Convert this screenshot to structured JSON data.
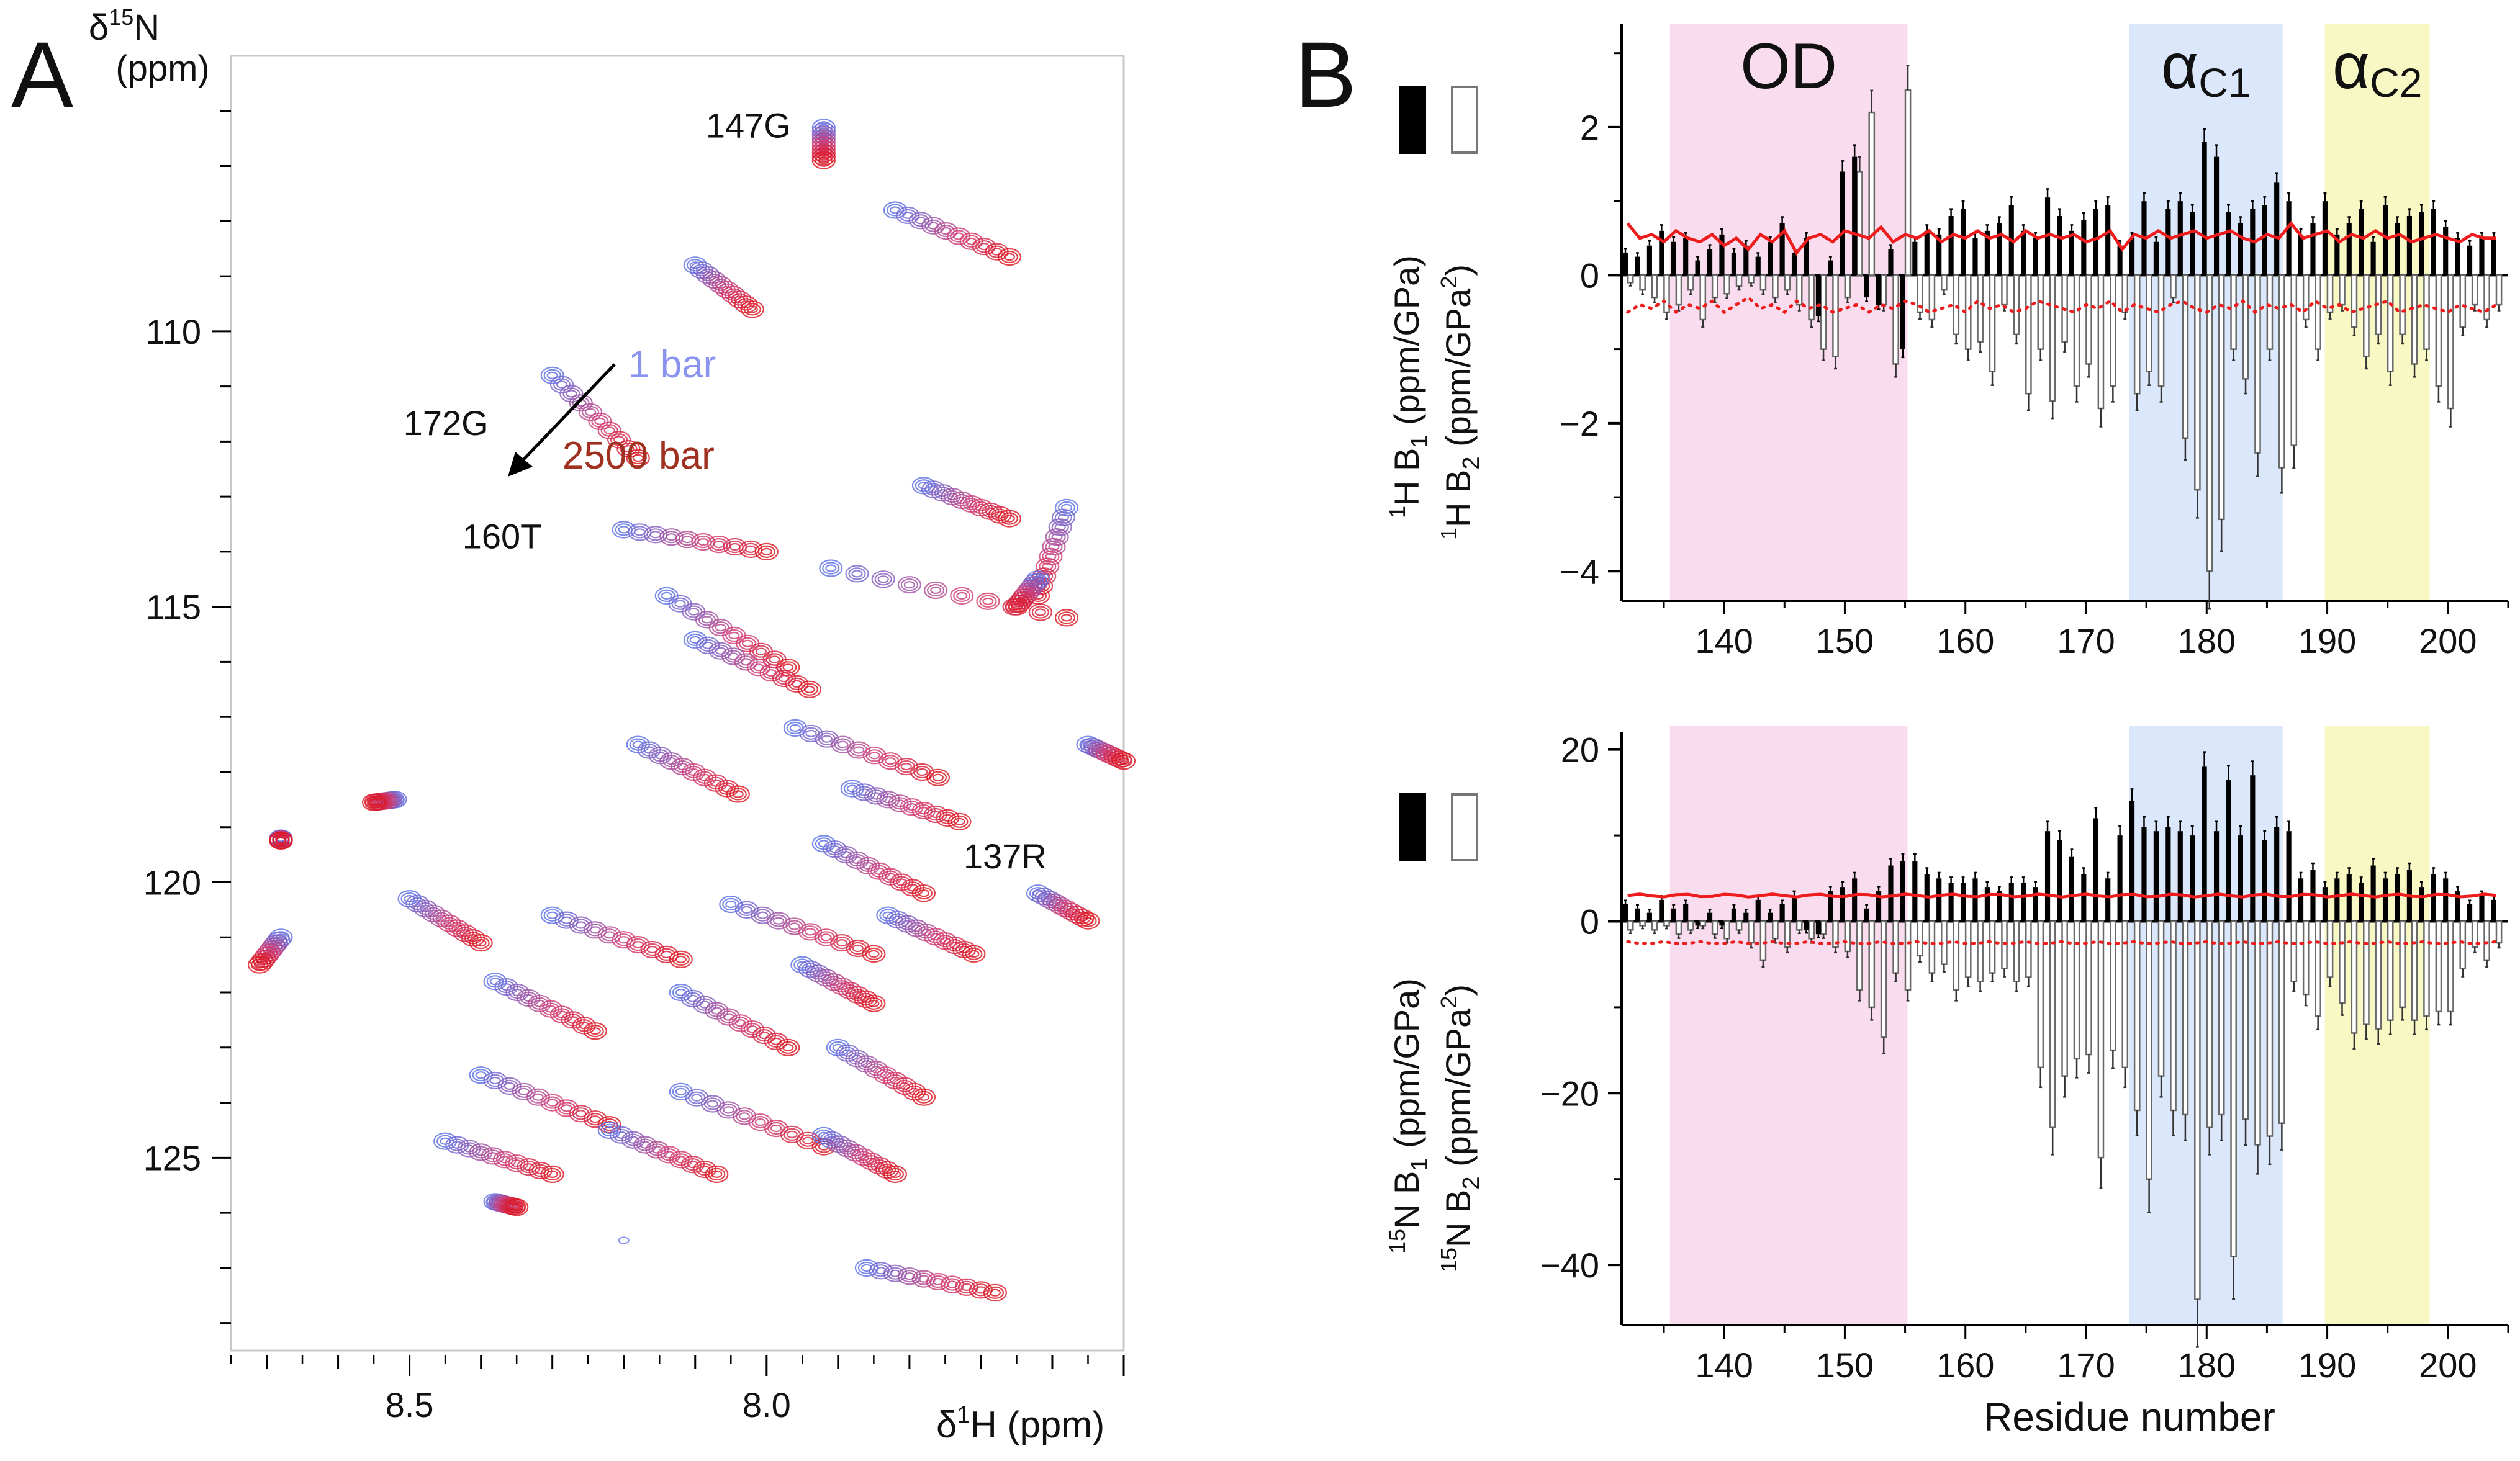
{
  "chart_data": [
    {
      "type": "scatter",
      "panel_label": "A",
      "subtype": "2D NMR 1H-15N HSQC contour overlay",
      "x_axis": {
        "label_prefix": "δ",
        "label_sup": "1",
        "label_rest": "H (ppm)",
        "reversed": true,
        "ticks": [
          "8.5",
          "8.0"
        ],
        "xlim": [
          8.75,
          7.5
        ]
      },
      "y_axis": {
        "label_line1_prefix": "δ",
        "label_line1_sup": "15",
        "label_line1_rest": "N",
        "label_line2": "(ppm)",
        "reversed": true,
        "ticks": [
          "110",
          "115",
          "120",
          "125"
        ],
        "ylim": [
          105,
          128.5
        ]
      },
      "legend": [
        {
          "name": "1 bar",
          "color": "#8a94f0"
        },
        {
          "name": "2500 bar",
          "color": "#a0301f"
        }
      ],
      "annotations": [
        "147G",
        "172G",
        "160T",
        "137R"
      ],
      "peaks": [
        {
          "x": 7.92,
          "y": 106.3,
          "dx": 0.0,
          "dy": 0.6,
          "label": "147G"
        },
        {
          "x": 7.82,
          "y": 107.8,
          "dx": -0.16,
          "dy": 0.85
        },
        {
          "x": 8.1,
          "y": 108.8,
          "dx": -0.08,
          "dy": 0.8
        },
        {
          "x": 8.3,
          "y": 110.8,
          "dx": -0.12,
          "dy": 1.5,
          "label": "172G"
        },
        {
          "x": 8.2,
          "y": 113.6,
          "dx": -0.2,
          "dy": 0.4,
          "label": "160T"
        },
        {
          "x": 7.78,
          "y": 112.8,
          "dx": -0.12,
          "dy": 0.6
        },
        {
          "x": 7.58,
          "y": 113.2,
          "dx": 0.04,
          "dy": 1.6
        },
        {
          "x": 7.62,
          "y": 114.5,
          "dx": 0.03,
          "dy": 0.5
        },
        {
          "x": 7.91,
          "y": 114.3,
          "dx": -0.33,
          "dy": 0.9
        },
        {
          "x": 8.14,
          "y": 114.8,
          "dx": -0.17,
          "dy": 1.3
        },
        {
          "x": 8.1,
          "y": 115.6,
          "dx": -0.16,
          "dy": 0.9
        },
        {
          "x": 7.96,
          "y": 117.2,
          "dx": -0.2,
          "dy": 0.9
        },
        {
          "x": 8.18,
          "y": 117.5,
          "dx": -0.14,
          "dy": 0.9
        },
        {
          "x": 7.88,
          "y": 118.3,
          "dx": -0.15,
          "dy": 0.6
        },
        {
          "x": 7.92,
          "y": 119.3,
          "dx": -0.14,
          "dy": 0.9
        },
        {
          "x": 8.52,
          "y": 118.5,
          "dx": 0.03,
          "dy": 0.05
        },
        {
          "x": 8.68,
          "y": 119.2,
          "dx": 0.0,
          "dy": 0.05
        },
        {
          "x": 7.62,
          "y": 120.2,
          "dx": -0.07,
          "dy": 0.5,
          "label": "137R"
        },
        {
          "x": 7.55,
          "y": 117.5,
          "dx": -0.05,
          "dy": 0.3
        },
        {
          "x": 8.68,
          "y": 121.0,
          "dx": 0.03,
          "dy": 0.5
        },
        {
          "x": 8.5,
          "y": 120.3,
          "dx": -0.1,
          "dy": 0.8
        },
        {
          "x": 8.3,
          "y": 120.6,
          "dx": -0.18,
          "dy": 0.8
        },
        {
          "x": 8.05,
          "y": 120.4,
          "dx": -0.2,
          "dy": 0.9
        },
        {
          "x": 7.83,
          "y": 120.6,
          "dx": -0.12,
          "dy": 0.7
        },
        {
          "x": 8.38,
          "y": 121.8,
          "dx": -0.14,
          "dy": 0.9
        },
        {
          "x": 8.12,
          "y": 122.0,
          "dx": -0.15,
          "dy": 1.0
        },
        {
          "x": 7.95,
          "y": 121.5,
          "dx": -0.1,
          "dy": 0.7
        },
        {
          "x": 8.4,
          "y": 123.5,
          "dx": -0.18,
          "dy": 0.9
        },
        {
          "x": 8.12,
          "y": 123.8,
          "dx": -0.2,
          "dy": 1.0
        },
        {
          "x": 7.9,
          "y": 123.0,
          "dx": -0.12,
          "dy": 0.9
        },
        {
          "x": 8.45,
          "y": 124.7,
          "dx": -0.15,
          "dy": 0.6
        },
        {
          "x": 8.22,
          "y": 124.5,
          "dx": -0.15,
          "dy": 0.8
        },
        {
          "x": 7.92,
          "y": 124.6,
          "dx": -0.1,
          "dy": 0.7
        },
        {
          "x": 8.38,
          "y": 125.8,
          "dx": -0.03,
          "dy": 0.1
        },
        {
          "x": 7.86,
          "y": 127.0,
          "dx": -0.18,
          "dy": 0.45
        }
      ]
    },
    {
      "type": "bar",
      "panel_label": "B",
      "subtype": "per-residue pressure coefficients, 1H",
      "xlabel": "",
      "ylabel_line1": {
        "pre_sup": "1",
        "text": "H B",
        "sub": "1",
        "units": " (ppm/GPa)"
      },
      "ylabel_line2": {
        "pre_sup": "1",
        "text": "H B",
        "sub": "2",
        "units": " (ppm/GPa",
        "units_sup": "2",
        "units_end": ")"
      },
      "xlim": [
        131.5,
        205
      ],
      "ylim": [
        -4.4,
        3.4
      ],
      "x_ticks": [
        "140",
        "150",
        "160",
        "170",
        "180",
        "190",
        "200"
      ],
      "y_ticks": [
        "−4",
        "−2",
        "0",
        "2"
      ],
      "regions": [
        {
          "name": "OD",
          "range": [
            135.5,
            155.2
          ],
          "color": "#fadcef"
        },
        {
          "name": "α",
          "subscript": "C1",
          "range": [
            173.6,
            186.3
          ],
          "color": "#dbe7fb"
        },
        {
          "name": "α",
          "subscript": "C2",
          "range": [
            189.8,
            198.5
          ],
          "color": "#f8f8c4"
        }
      ],
      "residues": [
        132,
        133,
        134,
        135,
        136,
        137,
        138,
        139,
        140,
        141,
        142,
        143,
        144,
        145,
        146,
        147,
        148,
        149,
        150,
        151,
        152,
        153,
        154,
        155,
        156,
        157,
        158,
        159,
        160,
        161,
        162,
        163,
        164,
        165,
        166,
        167,
        168,
        169,
        170,
        171,
        172,
        173,
        174,
        175,
        176,
        177,
        178,
        179,
        180,
        181,
        182,
        183,
        184,
        185,
        186,
        187,
        188,
        189,
        190,
        191,
        192,
        193,
        194,
        195,
        196,
        197,
        198,
        199,
        200,
        201,
        202,
        203,
        204
      ],
      "series": [
        {
          "name": "B1",
          "style": "filled black bars",
          "values": [
            0.3,
            0.25,
            0.4,
            0.6,
            0.45,
            0.5,
            0.2,
            0.35,
            0.55,
            0.3,
            0.4,
            0.25,
            0.45,
            0.7,
            0.3,
            0.5,
            -0.55,
            0.2,
            1.4,
            1.6,
            -0.3,
            -0.4,
            0.35,
            -1.0,
            0.45,
            0.6,
            0.55,
            0.8,
            0.9,
            0.5,
            0.6,
            0.7,
            0.95,
            0.6,
            0.5,
            1.05,
            0.8,
            0.6,
            0.75,
            0.9,
            0.95,
            0.4,
            0.5,
            1.0,
            0.45,
            0.9,
            1.0,
            0.85,
            1.8,
            1.6,
            0.85,
            0.7,
            0.9,
            0.95,
            1.25,
            1.0,
            0.55,
            0.7,
            1.0,
            0.55,
            0.7,
            0.9,
            0.45,
            0.95,
            0.7,
            0.8,
            0.85,
            0.9,
            0.65,
            0.5,
            0.4,
            0.5,
            0.5
          ]
        },
        {
          "name": "B2",
          "style": "open bars",
          "values": [
            -0.1,
            -0.2,
            -0.3,
            -0.5,
            -0.4,
            -0.2,
            -0.6,
            -0.3,
            -0.25,
            -0.15,
            -0.1,
            -0.2,
            -0.3,
            -0.2,
            -0.4,
            -0.6,
            -1.0,
            -1.1,
            -0.3,
            1.4,
            2.2,
            -0.4,
            -1.2,
            2.5,
            -0.5,
            -0.6,
            -0.2,
            -0.8,
            -1.0,
            -0.9,
            -1.3,
            -0.4,
            -0.8,
            -1.6,
            -1.0,
            -1.7,
            -0.9,
            -1.5,
            -1.2,
            -1.8,
            -1.5,
            -0.5,
            -1.6,
            -1.3,
            -1.5,
            -0.3,
            -2.2,
            -2.9,
            -4.0,
            -3.3,
            -1.0,
            -1.4,
            -2.4,
            -1.0,
            -2.6,
            -2.3,
            -0.6,
            -1.0,
            -0.5,
            -0.4,
            -0.7,
            -1.1,
            -0.8,
            -1.3,
            -0.8,
            -1.2,
            -1.0,
            -1.5,
            -1.8,
            -0.7,
            -0.4,
            -0.6,
            -0.4
          ]
        }
      ],
      "threshold_solid": {
        "name": "red solid line",
        "color": "#ee1c1c",
        "values": [
          0.7,
          0.5,
          0.55,
          0.45,
          0.6,
          0.5,
          0.45,
          0.55,
          0.4,
          0.5,
          0.35,
          0.55,
          0.45,
          0.6,
          0.3,
          0.5,
          0.55,
          0.45,
          0.6,
          0.55,
          0.5,
          0.65,
          0.45,
          0.55,
          0.5,
          0.6,
          0.45,
          0.55,
          0.5,
          0.6,
          0.5,
          0.55,
          0.45,
          0.6,
          0.5,
          0.55,
          0.5,
          0.55,
          0.45,
          0.5,
          0.6,
          0.35,
          0.55,
          0.5,
          0.6,
          0.5,
          0.55,
          0.6,
          0.5,
          0.55,
          0.6,
          0.5,
          0.45,
          0.55,
          0.5,
          0.7,
          0.5,
          0.55,
          0.6,
          0.45,
          0.55,
          0.5,
          0.6,
          0.5,
          0.55,
          0.45,
          0.5,
          0.55,
          0.5,
          0.45,
          0.55,
          0.5,
          0.5
        ]
      },
      "threshold_dotted": {
        "name": "red dotted line",
        "color": "#ee1c1c",
        "values": [
          -0.5,
          -0.4,
          -0.45,
          -0.35,
          -0.5,
          -0.4,
          -0.45,
          -0.35,
          -0.5,
          -0.4,
          -0.3,
          -0.45,
          -0.4,
          -0.5,
          -0.35,
          -0.45,
          -0.4,
          -0.5,
          -0.45,
          -0.4,
          -0.5,
          -0.4,
          -0.45,
          -0.35,
          -0.4,
          -0.5,
          -0.45,
          -0.4,
          -0.5,
          -0.35,
          -0.45,
          -0.4,
          -0.5,
          -0.45,
          -0.35,
          -0.4,
          -0.45,
          -0.5,
          -0.4,
          -0.45,
          -0.35,
          -0.5,
          -0.4,
          -0.45,
          -0.5,
          -0.4,
          -0.35,
          -0.45,
          -0.5,
          -0.4,
          -0.45,
          -0.35,
          -0.5,
          -0.4,
          -0.45,
          -0.4,
          -0.5,
          -0.35,
          -0.45,
          -0.4,
          -0.5,
          -0.45,
          -0.4,
          -0.35,
          -0.5,
          -0.45,
          -0.4,
          -0.45,
          -0.5,
          -0.4,
          -0.45,
          -0.5,
          -0.4
        ]
      }
    },
    {
      "type": "bar",
      "subtype": "per-residue pressure coefficients, 15N",
      "xlabel": "Residue number",
      "ylabel_line1": {
        "pre_sup": "15",
        "text": "N B",
        "sub": "1",
        "units": " (ppm/GPa)"
      },
      "ylabel_line2": {
        "pre_sup": "15",
        "text": "N B",
        "sub": "2",
        "units": " (ppm/GPa",
        "units_sup": "2",
        "units_end": ")"
      },
      "xlim": [
        131.5,
        205
      ],
      "ylim": [
        -47,
        22
      ],
      "x_ticks": [
        "140",
        "150",
        "160",
        "170",
        "180",
        "190",
        "200"
      ],
      "y_ticks": [
        "−40",
        "−20",
        "0",
        "20"
      ],
      "residues": [
        132,
        133,
        134,
        135,
        136,
        137,
        138,
        139,
        140,
        141,
        142,
        143,
        144,
        145,
        146,
        147,
        148,
        149,
        150,
        151,
        152,
        153,
        154,
        155,
        156,
        157,
        158,
        159,
        160,
        161,
        162,
        163,
        164,
        165,
        166,
        167,
        168,
        169,
        170,
        171,
        172,
        173,
        174,
        175,
        176,
        177,
        178,
        179,
        180,
        181,
        182,
        183,
        184,
        185,
        186,
        187,
        188,
        189,
        190,
        191,
        192,
        193,
        194,
        195,
        196,
        197,
        198,
        199,
        200,
        201,
        202,
        203,
        204
      ],
      "series": [
        {
          "name": "B1",
          "style": "filled black bars",
          "values": [
            2.0,
            1.5,
            1.0,
            2.5,
            1.5,
            2.0,
            -0.5,
            1.0,
            -0.5,
            1.5,
            1.0,
            2.5,
            1.0,
            2.0,
            3.0,
            -1.0,
            -1.5,
            3.5,
            4.0,
            5.0,
            1.5,
            3.5,
            6.5,
            7.0,
            7.0,
            5.5,
            5.0,
            4.5,
            4.5,
            5.0,
            4.0,
            3.5,
            4.5,
            4.5,
            4.0,
            10.5,
            9.5,
            7.5,
            5.5,
            12.0,
            5.0,
            10.0,
            14.0,
            11.0,
            10.5,
            11.0,
            10.5,
            10.0,
            18.0,
            10.5,
            16.5,
            10.0,
            17.0,
            9.5,
            11.0,
            10.5,
            5.0,
            6.0,
            4.0,
            5.0,
            5.5,
            4.5,
            6.5,
            5.0,
            5.5,
            6.0,
            4.0,
            5.5,
            5.0,
            3.5,
            2.0,
            3.0,
            2.5
          ]
        },
        {
          "name": "B2",
          "style": "open bars",
          "values": [
            -1.0,
            -0.5,
            -1.0,
            -0.5,
            -1.5,
            -1.0,
            -0.5,
            -1.5,
            -2.0,
            -1.0,
            -2.5,
            -4.5,
            -2.0,
            -3.0,
            -1.0,
            -2.0,
            -1.5,
            -3.0,
            -3.5,
            -8.0,
            -10.0,
            -13.5,
            -6.0,
            -8.0,
            -4.0,
            -6.0,
            -5.0,
            -8.0,
            -6.5,
            -7.0,
            -6.0,
            -5.5,
            -7.0,
            -6.5,
            -17.0,
            -24.0,
            -18.0,
            -16.0,
            -15.5,
            -27.5,
            -15.0,
            -17.0,
            -22.0,
            -30.0,
            -18.0,
            -22.0,
            -22.5,
            -44.0,
            -24.0,
            -22.5,
            -39.0,
            -23.0,
            -26.0,
            -25.0,
            -23.5,
            -7.0,
            -8.5,
            -11.0,
            -6.5,
            -9.5,
            -13.0,
            -12.0,
            -12.5,
            -11.5,
            -10.0,
            -11.5,
            -11.0,
            -10.5,
            -10.5,
            -5.5,
            -3.0,
            -4.5,
            -2.5
          ]
        }
      ],
      "threshold_solid": {
        "name": "red solid line",
        "color": "#ee1c1c",
        "value": 3.0
      },
      "threshold_dotted": {
        "name": "red dotted line",
        "color": "#ee1c1c",
        "value": -2.5
      }
    }
  ]
}
